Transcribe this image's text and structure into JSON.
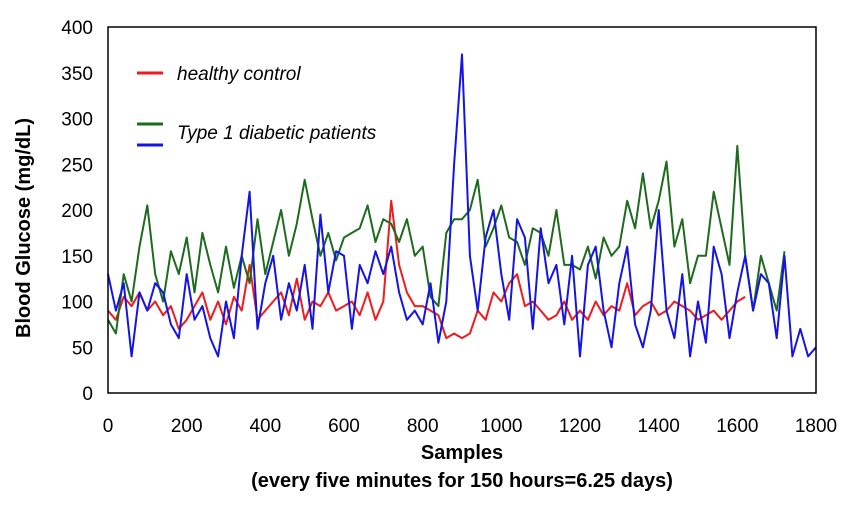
{
  "chart_data": {
    "type": "line",
    "title": "",
    "xlabel": "Samples",
    "xlabel_sub": "(every five minutes for 150 hours=6.25 days)",
    "ylabel": "Blood Glucose (mg/dL)",
    "xlim": [
      0,
      1800
    ],
    "ylim": [
      0,
      400
    ],
    "xticks": [
      0,
      200,
      400,
      600,
      800,
      1000,
      1200,
      1400,
      1600,
      1800
    ],
    "yticks": [
      0,
      50,
      100,
      150,
      200,
      250,
      300,
      350,
      400
    ],
    "grid": false,
    "legend_position": "top-left",
    "series": [
      {
        "name": "healthy control",
        "color": "#ee1c1c",
        "x": [
          0,
          20,
          40,
          60,
          80,
          100,
          120,
          140,
          160,
          180,
          200,
          220,
          240,
          260,
          280,
          300,
          320,
          340,
          360,
          380,
          400,
          420,
          440,
          460,
          480,
          500,
          520,
          540,
          560,
          580,
          600,
          620,
          640,
          660,
          680,
          700,
          720,
          740,
          760,
          780,
          800,
          820,
          840,
          860,
          880,
          900,
          920,
          940,
          960,
          980,
          1000,
          1020,
          1040,
          1060,
          1080,
          1100,
          1120,
          1140,
          1160,
          1180,
          1200,
          1220,
          1240,
          1260,
          1280,
          1300,
          1320,
          1340,
          1360,
          1380,
          1400,
          1420,
          1440,
          1460,
          1480,
          1500,
          1520,
          1540,
          1560,
          1580,
          1600,
          1620
        ],
        "values": [
          90,
          80,
          105,
          95,
          110,
          90,
          100,
          85,
          95,
          70,
          80,
          95,
          110,
          80,
          100,
          75,
          105,
          90,
          140,
          80,
          90,
          100,
          110,
          85,
          125,
          80,
          100,
          95,
          110,
          90,
          95,
          100,
          85,
          110,
          80,
          100,
          210,
          140,
          110,
          95,
          95,
          90,
          85,
          60,
          65,
          60,
          65,
          90,
          80,
          110,
          100,
          120,
          130,
          95,
          100,
          90,
          80,
          85,
          100,
          80,
          90,
          80,
          100,
          85,
          95,
          90,
          120,
          85,
          95,
          100,
          85,
          90,
          100,
          95,
          90,
          80,
          85,
          90,
          80,
          90,
          100,
          105
        ]
      },
      {
        "name": "Type 1 diabetic patients",
        "color": "#1e6b1e",
        "x": [
          0,
          20,
          40,
          60,
          80,
          100,
          120,
          140,
          160,
          180,
          200,
          220,
          240,
          260,
          280,
          300,
          320,
          340,
          360,
          380,
          400,
          420,
          440,
          460,
          480,
          500,
          520,
          540,
          560,
          580,
          600,
          620,
          640,
          660,
          680,
          700,
          720,
          740,
          760,
          780,
          800,
          820,
          840,
          860,
          880,
          900,
          920,
          940,
          960,
          980,
          1000,
          1020,
          1040,
          1060,
          1080,
          1100,
          1120,
          1140,
          1160,
          1180,
          1200,
          1220,
          1240,
          1260,
          1280,
          1300,
          1320,
          1340,
          1360,
          1380,
          1400,
          1420,
          1440,
          1460,
          1480,
          1500,
          1520,
          1540,
          1560,
          1580,
          1600,
          1620,
          1640,
          1660,
          1680,
          1700,
          1720
        ],
        "values": [
          80,
          65,
          130,
          100,
          160,
          205,
          130,
          100,
          155,
          130,
          170,
          110,
          175,
          140,
          110,
          160,
          115,
          150,
          120,
          190,
          130,
          165,
          200,
          150,
          185,
          233,
          190,
          150,
          175,
          145,
          170,
          175,
          180,
          205,
          165,
          190,
          185,
          165,
          190,
          150,
          160,
          105,
          95,
          175,
          190,
          190,
          200,
          233,
          160,
          180,
          205,
          170,
          165,
          140,
          180,
          175,
          150,
          200,
          140,
          140,
          135,
          160,
          125,
          170,
          150,
          160,
          210,
          180,
          240,
          180,
          210,
          253,
          160,
          190,
          120,
          150,
          150,
          220,
          180,
          140,
          270,
          150,
          90,
          150,
          120,
          90,
          155
        ]
      },
      {
        "name": "Type 1 diabetic patients",
        "color": "#1414e6",
        "x": [
          0,
          20,
          40,
          60,
          80,
          100,
          120,
          140,
          160,
          180,
          200,
          220,
          240,
          260,
          280,
          300,
          320,
          340,
          360,
          380,
          400,
          420,
          440,
          460,
          480,
          500,
          520,
          540,
          560,
          580,
          600,
          620,
          640,
          660,
          680,
          700,
          720,
          740,
          760,
          780,
          800,
          820,
          840,
          860,
          880,
          900,
          920,
          940,
          960,
          980,
          1000,
          1020,
          1040,
          1060,
          1080,
          1100,
          1120,
          1140,
          1160,
          1180,
          1200,
          1220,
          1240,
          1260,
          1280,
          1300,
          1320,
          1340,
          1360,
          1380,
          1400,
          1420,
          1440,
          1460,
          1480,
          1500,
          1520,
          1540,
          1560,
          1580,
          1600,
          1620,
          1640,
          1660,
          1680,
          1700,
          1720,
          1740,
          1760,
          1780,
          1800
        ],
        "values": [
          130,
          90,
          120,
          40,
          110,
          90,
          120,
          110,
          75,
          60,
          130,
          80,
          95,
          60,
          40,
          100,
          60,
          150,
          220,
          70,
          120,
          150,
          80,
          120,
          90,
          140,
          70,
          195,
          110,
          155,
          150,
          70,
          140,
          120,
          155,
          130,
          160,
          110,
          80,
          90,
          75,
          120,
          55,
          100,
          250,
          370,
          150,
          90,
          170,
          200,
          130,
          80,
          190,
          170,
          70,
          180,
          120,
          140,
          75,
          150,
          40,
          140,
          160,
          90,
          50,
          120,
          160,
          75,
          50,
          90,
          200,
          90,
          60,
          130,
          40,
          100,
          55,
          160,
          130,
          60,
          110,
          150,
          90,
          130,
          120,
          60,
          150,
          40,
          70,
          40,
          50
        ]
      }
    ],
    "legend": [
      {
        "label": "healthy control",
        "color": "#ee1c1c"
      },
      {
        "label": "Type 1 diabetic patients",
        "colors": [
          "#1e6b1e",
          "#1414e6"
        ]
      }
    ]
  }
}
